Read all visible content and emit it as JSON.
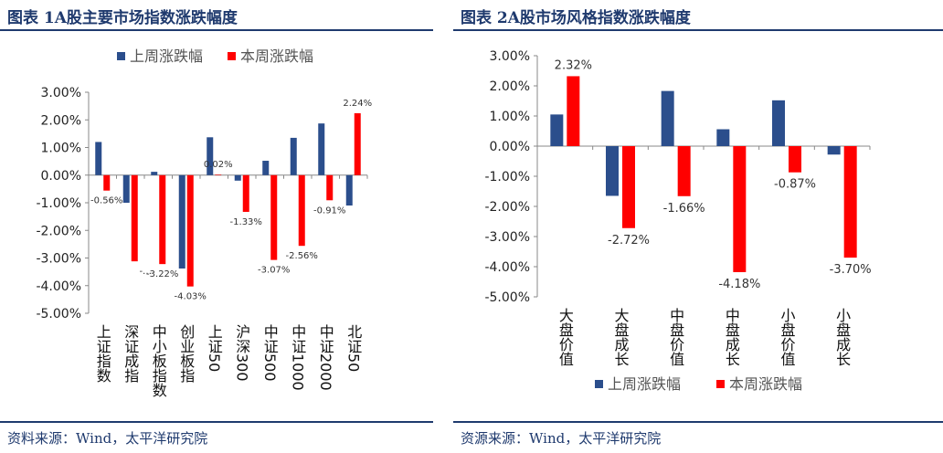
{
  "figures": [
    {
      "title": "图表 1A股主要市场指数涨跌幅度",
      "source": "资料来源：Wind，太平洋研究院"
    },
    {
      "title": "图表 2A股市场风格指数涨跌幅度",
      "source": "资源来源：Wind，太平洋研究院"
    }
  ],
  "chart_data": [
    {
      "type": "bar",
      "categories": [
        "上证指数",
        "深证成指",
        "中小板指数",
        "创业板指",
        "上证50",
        "沪深300",
        "中证500",
        "中证1000",
        "中证2000",
        "北证50"
      ],
      "series": [
        {
          "name": "上周涨跌幅",
          "color": "#2b4e8c",
          "values": [
            1.2,
            -1.0,
            0.12,
            -3.38,
            1.37,
            -0.2,
            0.52,
            1.35,
            1.87,
            -1.1
          ]
        },
        {
          "name": "本周涨跌幅",
          "color": "#ff0000",
          "values": [
            -0.56,
            -3.12,
            -3.22,
            -4.03,
            0.02,
            -1.33,
            -3.07,
            -2.56,
            -0.91,
            2.24
          ]
        }
      ],
      "data_labels": [
        "-0.56%",
        "-…",
        "-3.22%",
        "-4.03%",
        "0.02%",
        "-1.33%",
        "-3.07%",
        "-2.56%",
        "-0.91%",
        "2.24%"
      ],
      "yticks": [
        "3.00%",
        "2.00%",
        "1.00%",
        "0.00%",
        "-1.00%",
        "-2.00%",
        "-3.00%",
        "-4.00%",
        "-5.00%"
      ],
      "ylim": [
        -5,
        3
      ],
      "grid": false,
      "legend": "top"
    },
    {
      "type": "bar",
      "categories": [
        "大盘价值",
        "大盘成长",
        "中盘价值",
        "中盘成长",
        "小盘价值",
        "小盘成长"
      ],
      "series": [
        {
          "name": "上周涨跌幅",
          "color": "#2b4e8c",
          "values": [
            1.05,
            -1.65,
            1.83,
            0.56,
            1.52,
            -0.28
          ]
        },
        {
          "name": "本周涨跌幅",
          "color": "#ff0000",
          "values": [
            2.32,
            -2.72,
            -1.66,
            -4.18,
            -0.87,
            -3.7
          ]
        }
      ],
      "data_labels": [
        "2.32%",
        "-2.72%",
        "-1.66%",
        "-4.18%",
        "-0.87%",
        "-3.70%"
      ],
      "yticks": [
        "3.00%",
        "2.00%",
        "1.00%",
        "0.00%",
        "-1.00%",
        "-2.00%",
        "-3.00%",
        "-4.00%",
        "-5.00%"
      ],
      "ylim": [
        -5,
        3
      ],
      "grid": false,
      "legend": "bottom"
    }
  ]
}
